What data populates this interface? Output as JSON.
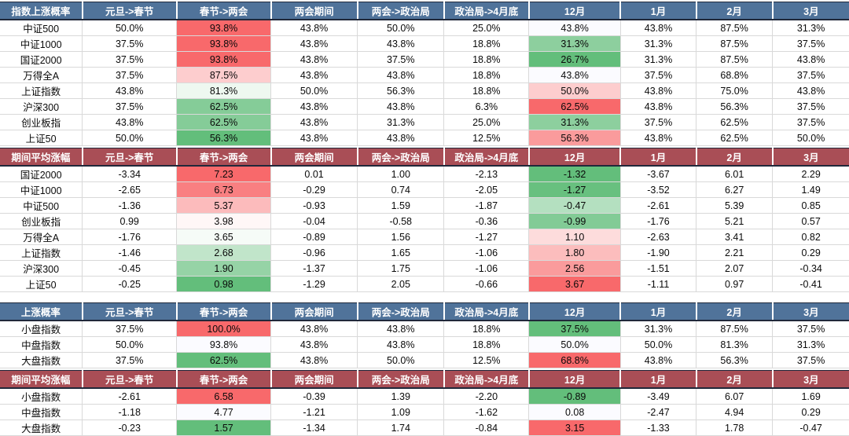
{
  "colors": {
    "header_blue": "#50739a",
    "header_maroon": "#a94e56",
    "scale_high_red": "#F8696B",
    "scale_low_green": "#63BE7B",
    "grid_line": "#d9d9d9",
    "header_edge": "#20283a"
  },
  "conditional_format_note": "red=high, green=low, applied within columns 春节->两会 and 12月",
  "chart_data": [
    {
      "type": "table",
      "title": "指数上涨概率",
      "theme": "blue",
      "columns": [
        "元旦->春节",
        "春节->两会",
        "两会期间",
        "两会->政治局",
        "政治局->4月底",
        "12月",
        "1月",
        "2月",
        "3月"
      ],
      "colored_columns": [
        "春节->两会",
        "12月"
      ],
      "rows": [
        {
          "label": "中证500",
          "values": [
            "50.0%",
            "93.8%",
            "43.8%",
            "50.0%",
            "25.0%",
            "43.8%",
            "43.8%",
            "87.5%",
            "31.3%"
          ],
          "bg": [
            null,
            "#F8696B",
            null,
            null,
            null,
            "#FBFBFF",
            null,
            null,
            null
          ]
        },
        {
          "label": "中证1000",
          "values": [
            "37.5%",
            "93.8%",
            "43.8%",
            "43.8%",
            "18.8%",
            "31.3%",
            "31.3%",
            "87.5%",
            "37.5%"
          ],
          "bg": [
            null,
            "#F8696B",
            null,
            null,
            null,
            "#8DCF9E",
            null,
            null,
            null
          ]
        },
        {
          "label": "国证2000",
          "values": [
            "37.5%",
            "93.8%",
            "43.8%",
            "37.5%",
            "18.8%",
            "26.7%",
            "31.3%",
            "87.5%",
            "43.8%"
          ],
          "bg": [
            null,
            "#F8696B",
            null,
            null,
            null,
            "#63BE7B",
            null,
            null,
            null
          ]
        },
        {
          "label": "万得全A",
          "values": [
            "37.5%",
            "87.5%",
            "43.8%",
            "43.8%",
            "18.8%",
            "43.8%",
            "37.5%",
            "68.8%",
            "37.5%"
          ],
          "bg": [
            null,
            "#FDCDCE",
            null,
            null,
            null,
            "#FBFBFF",
            null,
            null,
            null
          ]
        },
        {
          "label": "上证指数",
          "values": [
            "43.8%",
            "81.3%",
            "50.0%",
            "56.3%",
            "18.8%",
            "50.0%",
            "43.8%",
            "75.0%",
            "43.8%"
          ],
          "bg": [
            null,
            "#EEF8F0",
            null,
            null,
            null,
            "#FDCDCE",
            null,
            null,
            null
          ]
        },
        {
          "label": "沪深300",
          "values": [
            "37.5%",
            "62.5%",
            "43.8%",
            "43.8%",
            "6.3%",
            "62.5%",
            "43.8%",
            "56.3%",
            "37.5%"
          ],
          "bg": [
            null,
            "#85CC98",
            null,
            null,
            null,
            "#F8696B",
            null,
            null,
            null
          ]
        },
        {
          "label": "创业板指",
          "values": [
            "43.8%",
            "62.5%",
            "43.8%",
            "31.3%",
            "25.0%",
            "31.3%",
            "37.5%",
            "62.5%",
            "37.5%"
          ],
          "bg": [
            null,
            "#85CC98",
            null,
            null,
            null,
            "#8DCF9E",
            null,
            null,
            null
          ]
        },
        {
          "label": "上证50",
          "values": [
            "50.0%",
            "56.3%",
            "43.8%",
            "43.8%",
            "12.5%",
            "56.3%",
            "43.8%",
            "62.5%",
            "50.0%"
          ],
          "bg": [
            null,
            "#63BE7B",
            null,
            null,
            null,
            "#FA9B9C",
            null,
            null,
            null
          ]
        }
      ]
    },
    {
      "type": "table",
      "title": "期间平均涨幅",
      "theme": "maroon",
      "columns": [
        "元旦->春节",
        "春节->两会",
        "两会期间",
        "两会->政治局",
        "政治局->4月底",
        "12月",
        "1月",
        "2月",
        "3月"
      ],
      "colored_columns": [
        "春节->两会",
        "12月"
      ],
      "rows": [
        {
          "label": "国证2000",
          "values": [
            "-3.34",
            "7.23",
            "0.01",
            "1.00",
            "-2.13",
            "-1.32",
            "-3.67",
            "6.01",
            "2.29"
          ],
          "bg": [
            null,
            "#F8696B",
            null,
            null,
            null,
            "#63BE7B",
            null,
            null,
            null
          ]
        },
        {
          "label": "中证1000",
          "values": [
            "-2.65",
            "6.73",
            "-0.29",
            "0.74",
            "-2.05",
            "-1.27",
            "-3.52",
            "6.27",
            "1.49"
          ],
          "bg": [
            null,
            "#F97F81",
            null,
            null,
            null,
            "#68C07F",
            null,
            null,
            null
          ]
        },
        {
          "label": "中证500",
          "values": [
            "-1.36",
            "5.37",
            "-0.93",
            "1.59",
            "-1.87",
            "-0.47",
            "-2.61",
            "5.39",
            "0.85"
          ],
          "bg": [
            null,
            "#FCBBBC",
            null,
            null,
            null,
            "#B4E0C0",
            null,
            null,
            null
          ]
        },
        {
          "label": "创业板指",
          "values": [
            "0.99",
            "3.98",
            "-0.04",
            "-0.58",
            "-0.36",
            "-0.99",
            "-1.76",
            "5.21",
            "0.57"
          ],
          "bg": [
            null,
            "#FFF7F7",
            null,
            null,
            null,
            "#82CB96",
            null,
            null,
            null
          ]
        },
        {
          "label": "万得全A",
          "values": [
            "-1.76",
            "3.65",
            "-0.89",
            "1.56",
            "-1.27",
            "1.10",
            "-2.63",
            "3.41",
            "0.82"
          ],
          "bg": [
            null,
            "#F6FBF7",
            null,
            null,
            null,
            "#FDDCDC",
            null,
            null,
            null
          ]
        },
        {
          "label": "上证指数",
          "values": [
            "-1.46",
            "2.68",
            "-0.96",
            "1.65",
            "-1.06",
            "1.80",
            "-1.90",
            "2.21",
            "0.29"
          ],
          "bg": [
            null,
            "#C1E5CA",
            null,
            null,
            null,
            "#FCBDBD",
            null,
            null,
            null
          ]
        },
        {
          "label": "沪深300",
          "values": [
            "-0.45",
            "1.90",
            "-1.37",
            "1.75",
            "-1.06",
            "2.56",
            "-1.51",
            "2.07",
            "-0.34"
          ],
          "bg": [
            null,
            "#96D3A6",
            null,
            null,
            null,
            "#FA9B9C",
            null,
            null,
            null
          ]
        },
        {
          "label": "上证50",
          "values": [
            "-0.25",
            "0.98",
            "-1.29",
            "2.05",
            "-0.66",
            "3.67",
            "-1.11",
            "0.97",
            "-0.41"
          ],
          "bg": [
            null,
            "#63BE7B",
            null,
            null,
            null,
            "#F8696B",
            null,
            null,
            null
          ]
        }
      ]
    },
    {
      "type": "table",
      "title": "上涨概率",
      "theme": "blue",
      "columns": [
        "元旦->春节",
        "春节->两会",
        "两会期间",
        "两会->政治局",
        "政治局->4月底",
        "12月",
        "1月",
        "2月",
        "3月"
      ],
      "colored_columns": [
        "春节->两会",
        "12月"
      ],
      "rows": [
        {
          "label": "小盘指数",
          "values": [
            "37.5%",
            "100.0%",
            "43.8%",
            "43.8%",
            "18.8%",
            "37.5%",
            "31.3%",
            "87.5%",
            "37.5%"
          ],
          "bg": [
            null,
            "#F8696B",
            null,
            null,
            null,
            "#63BE7B",
            null,
            null,
            null
          ]
        },
        {
          "label": "中盘指数",
          "values": [
            "50.0%",
            "93.8%",
            "43.8%",
            "43.8%",
            "18.8%",
            "50.0%",
            "50.0%",
            "81.3%",
            "31.3%"
          ],
          "bg": [
            null,
            "#FBFBFF",
            null,
            null,
            null,
            "#FBFBFF",
            null,
            null,
            null
          ]
        },
        {
          "label": "大盘指数",
          "values": [
            "37.5%",
            "62.5%",
            "43.8%",
            "50.0%",
            "12.5%",
            "68.8%",
            "43.8%",
            "56.3%",
            "37.5%"
          ],
          "bg": [
            null,
            "#63BE7B",
            null,
            null,
            null,
            "#F8696B",
            null,
            null,
            null
          ]
        }
      ]
    },
    {
      "type": "table",
      "title": "期间平均涨幅",
      "theme": "maroon",
      "columns": [
        "元旦->春节",
        "春节->两会",
        "两会期间",
        "两会->政治局",
        "政治局->4月底",
        "12月",
        "1月",
        "2月",
        "3月"
      ],
      "colored_columns": [
        "春节->两会",
        "12月"
      ],
      "rows": [
        {
          "label": "小盘指数",
          "values": [
            "-2.61",
            "6.58",
            "-0.39",
            "1.39",
            "-2.20",
            "-0.89",
            "-3.49",
            "6.07",
            "1.69"
          ],
          "bg": [
            null,
            "#F8696B",
            null,
            null,
            null,
            "#63BE7B",
            null,
            null,
            null
          ]
        },
        {
          "label": "中盘指数",
          "values": [
            "-1.18",
            "4.77",
            "-1.21",
            "1.09",
            "-1.62",
            "0.08",
            "-2.47",
            "4.94",
            "0.29"
          ],
          "bg": [
            null,
            "#FBFBFF",
            null,
            null,
            null,
            "#FBFBFF",
            null,
            null,
            null
          ]
        },
        {
          "label": "大盘指数",
          "values": [
            "-0.23",
            "1.57",
            "-1.34",
            "1.74",
            "-0.84",
            "3.15",
            "-1.33",
            "1.78",
            "-0.47"
          ],
          "bg": [
            null,
            "#63BE7B",
            null,
            null,
            null,
            "#F8696B",
            null,
            null,
            null
          ]
        }
      ]
    }
  ]
}
